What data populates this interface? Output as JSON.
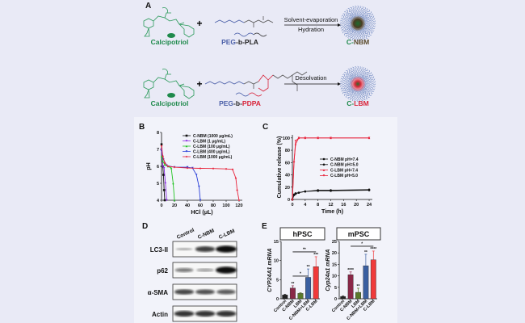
{
  "panel_labels": {
    "a": "A",
    "b": "B",
    "c": "C",
    "d": "D",
    "e": "E"
  },
  "scheme": {
    "row1": {
      "drug": "Calcipotriol",
      "plus": "+",
      "polymer": {
        "peg": "PEG",
        "link": "-b-",
        "block": "PLA"
      },
      "process_top": "Solvent-evaporation",
      "process_bottom": "Hydration",
      "product": {
        "prefix": "C-",
        "suffix": "NBM"
      }
    },
    "row2": {
      "drug": "Calcipotriol",
      "plus": "+",
      "polymer": {
        "peg": "PEG",
        "link": "-b-",
        "block": "PDPA"
      },
      "process_top": "Desolvation",
      "product": {
        "prefix": "C-",
        "suffix": "LBM"
      }
    }
  },
  "colors": {
    "drug": "#1f8a4c",
    "peg": "#4a5fa8",
    "pla": "#222222",
    "pdpa": "#d8243a",
    "nbm": "#5a4a2a",
    "background": "#e9eaf6"
  },
  "western_blot": {
    "columns": [
      "Control",
      "C-NBM",
      "C-LBM"
    ],
    "rows": [
      {
        "label": "LC3-II",
        "intensity": [
          0.15,
          0.75,
          1.0
        ]
      },
      {
        "label": "p62",
        "intensity": [
          0.45,
          0.25,
          1.0
        ]
      },
      {
        "label": "α-SMA",
        "intensity": [
          0.7,
          0.65,
          0.6
        ]
      },
      {
        "label": "Actin",
        "intensity": [
          0.8,
          0.8,
          0.8
        ]
      }
    ]
  },
  "chart_data": [
    {
      "panel": "B",
      "type": "line",
      "xlabel": "HCl (μL)",
      "ylabel": "pH",
      "xlim": [
        0,
        125
      ],
      "ylim": [
        4,
        8
      ],
      "xticks": [
        0,
        20,
        40,
        60,
        80,
        100,
        120
      ],
      "yticks": [
        4,
        5,
        6,
        7,
        8
      ],
      "legend": "top-right",
      "series": [
        {
          "name": "C-NBM (1000 μg/mL)",
          "color": "#111111",
          "marker": "square",
          "points": [
            [
              0,
              7.3
            ],
            [
              1,
              6.6
            ],
            [
              2,
              6.0
            ],
            [
              3,
              5.5
            ],
            [
              4,
              4.6
            ],
            [
              5,
              4.0
            ]
          ]
        },
        {
          "name": "C-LBM (1 μg/mL)",
          "color": "#8a2be2",
          "marker": "triangle-down",
          "points": [
            [
              0,
              7.0
            ],
            [
              1,
              6.5
            ],
            [
              2,
              6.0
            ],
            [
              4,
              5.9
            ],
            [
              6,
              5.0
            ],
            [
              8,
              4.0
            ]
          ]
        },
        {
          "name": "C-LBM (100 μg/mL)",
          "color": "#22c422",
          "marker": "triangle",
          "points": [
            [
              0,
              6.6
            ],
            [
              2,
              6.3
            ],
            [
              5,
              6.1
            ],
            [
              10,
              6.0
            ],
            [
              15,
              5.9
            ],
            [
              18,
              5.0
            ],
            [
              20,
              4.0
            ]
          ]
        },
        {
          "name": "C-LBM (400 μg/mL)",
          "color": "#2a3fd8",
          "marker": "triangle-down",
          "points": [
            [
              0,
              6.9
            ],
            [
              3,
              6.4
            ],
            [
              8,
              6.05
            ],
            [
              20,
              5.95
            ],
            [
              40,
              5.95
            ],
            [
              48,
              5.9
            ],
            [
              54,
              5.5
            ],
            [
              58,
              4.8
            ],
            [
              60,
              4.0
            ]
          ]
        },
        {
          "name": "C-LBM (1000 μg/mL)",
          "color": "#e8233a",
          "marker": "diamond",
          "points": [
            [
              0,
              7.2
            ],
            [
              2,
              6.6
            ],
            [
              5,
              6.2
            ],
            [
              10,
              6.0
            ],
            [
              20,
              5.95
            ],
            [
              40,
              5.9
            ],
            [
              60,
              5.88
            ],
            [
              80,
              5.87
            ],
            [
              100,
              5.85
            ],
            [
              110,
              5.82
            ],
            [
              115,
              5.3
            ],
            [
              117,
              4.6
            ],
            [
              120,
              4.0
            ]
          ]
        }
      ]
    },
    {
      "panel": "C",
      "type": "line",
      "xlabel": "Time (h)",
      "ylabel": "Cumulative release (%)",
      "xlim": [
        0,
        25
      ],
      "ylim": [
        0,
        105
      ],
      "xticks": [
        0,
        4,
        8,
        12,
        16,
        20,
        24
      ],
      "yticks": [
        0,
        20,
        40,
        60,
        80,
        100
      ],
      "legend": "right",
      "series": [
        {
          "name": "C-NBM pH=7.4",
          "color": "#111111",
          "marker": "circle",
          "points": [
            [
              0,
              0
            ],
            [
              0.5,
              8
            ],
            [
              1,
              10
            ],
            [
              2,
              11
            ],
            [
              4,
              13
            ],
            [
              8,
              15
            ],
            [
              12,
              15
            ],
            [
              24,
              16
            ]
          ]
        },
        {
          "name": "C-NBM pH=5.0",
          "color": "#111111",
          "marker": "circle",
          "points": [
            [
              0,
              0
            ],
            [
              0.5,
              7
            ],
            [
              1,
              9
            ],
            [
              2,
              11
            ],
            [
              4,
              13
            ],
            [
              8,
              14
            ],
            [
              12,
              14
            ],
            [
              24,
              15
            ]
          ]
        },
        {
          "name": "C-LBM pH=7.4",
          "color": "#e8233a",
          "marker": "triangle",
          "points": [
            [
              0,
              0
            ],
            [
              0.5,
              62
            ],
            [
              1,
              90
            ],
            [
              2,
              100
            ],
            [
              4,
              100
            ],
            [
              8,
              100
            ],
            [
              12,
              100
            ],
            [
              24,
              100
            ]
          ]
        },
        {
          "name": "C-LBM pH=5.0",
          "color": "#e8233a",
          "marker": "triangle-down",
          "points": [
            [
              0,
              0
            ],
            [
              0.5,
              60
            ],
            [
              1,
              95
            ],
            [
              2,
              100
            ],
            [
              4,
              100
            ],
            [
              8,
              100
            ],
            [
              12,
              100
            ],
            [
              24,
              100
            ]
          ]
        }
      ]
    },
    {
      "panel": "E",
      "type": "bar",
      "title": "hPSC",
      "ylabel": "CYP24A1 mRNA",
      "ylim": [
        0,
        15
      ],
      "yticks": [
        0,
        5,
        10,
        15
      ],
      "categories": [
        "Control",
        "C-NBM",
        "LBM",
        "C-NBM+LBM",
        "C-LBM"
      ],
      "colors": [
        "#222222",
        "#8a2848",
        "#5a7a2a",
        "#3a5fa0",
        "#f03a3a"
      ],
      "values": [
        1.0,
        2.8,
        1.4,
        5.6,
        8.4
      ],
      "errors": [
        0.2,
        0.6,
        0.2,
        2.2,
        2.6
      ],
      "significance": [
        "",
        "**",
        "",
        "**",
        "***"
      ],
      "brackets": [
        {
          "from": "C-NBM",
          "to": "C-NBM+LBM",
          "label": "*"
        },
        {
          "from": "C-NBM",
          "to": "C-LBM",
          "label": "**"
        }
      ]
    },
    {
      "panel": "E",
      "type": "bar",
      "title": "mPSC",
      "ylabel": "Cyp24a1 mRNA",
      "ylim": [
        0,
        25
      ],
      "yticks": [
        0,
        5,
        10,
        15,
        20,
        25
      ],
      "categories": [
        "Control",
        "C-NBM",
        "LBM",
        "C-NBM+LBM",
        "C-LBM"
      ],
      "colors": [
        "#222222",
        "#8a2848",
        "#5a7a2a",
        "#3a5fa0",
        "#f03a3a"
      ],
      "values": [
        1.0,
        10.5,
        2.8,
        14.4,
        17.0
      ],
      "errors": [
        0.3,
        1.2,
        1.8,
        5.0,
        3.8
      ],
      "significance": [
        "",
        "****",
        "**",
        "**",
        "****"
      ],
      "brackets": [
        {
          "from": "C-NBM",
          "to": "C-LBM",
          "label": "*"
        }
      ]
    }
  ]
}
